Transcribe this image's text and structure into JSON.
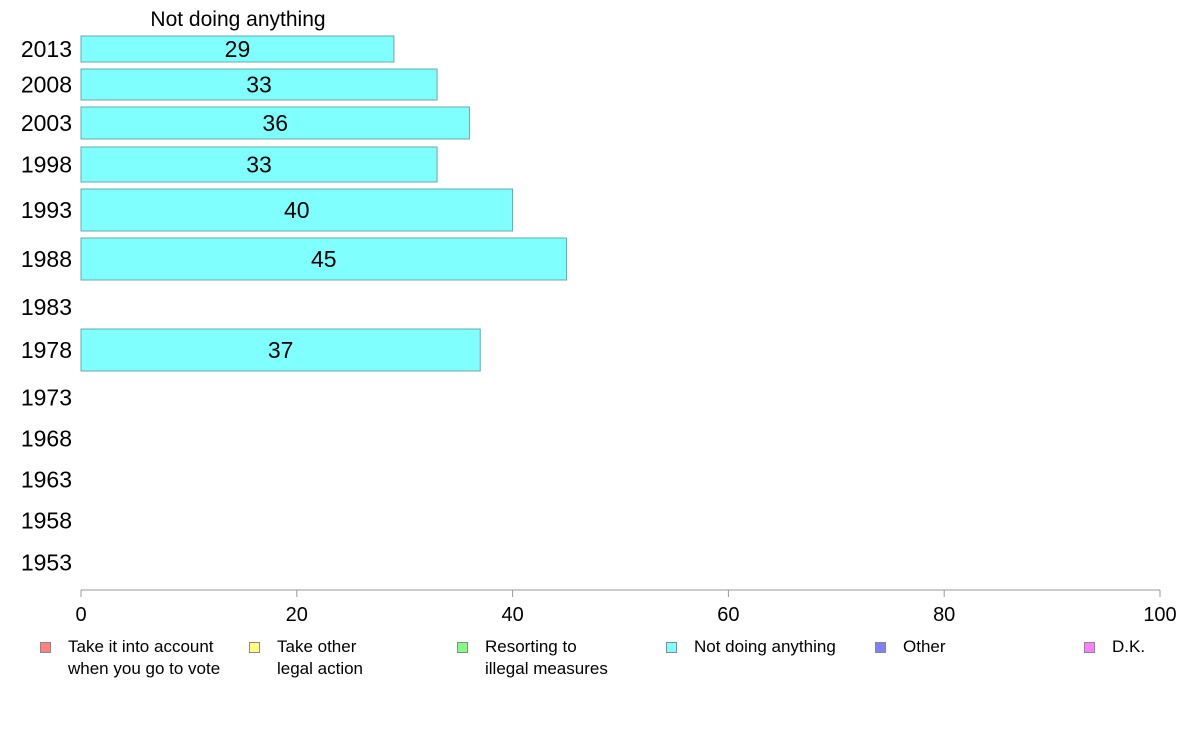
{
  "chart_data": {
    "type": "bar",
    "orientation": "horizontal",
    "title": "Not doing anything",
    "categories": [
      "2013",
      "2008",
      "2003",
      "1998",
      "1993",
      "1988",
      "1983",
      "1978",
      "1973",
      "1968",
      "1963",
      "1958",
      "1953"
    ],
    "series": [
      {
        "name": "Not doing anything",
        "color": "#80ffff",
        "values": [
          29,
          33,
          36,
          33,
          40,
          45,
          null,
          37,
          null,
          null,
          null,
          null,
          null
        ],
        "labels": [
          "29",
          "33",
          "36",
          "33",
          "40",
          "45",
          "",
          "37",
          "",
          "",
          "",
          "",
          ""
        ]
      }
    ],
    "xlim": [
      0,
      100
    ],
    "xticks": [
      "0",
      "20",
      "40",
      "60",
      "80",
      "100"
    ],
    "xlabel": "",
    "ylabel": "",
    "grid": false,
    "legend_position": "bottom"
  },
  "legend": [
    {
      "label": "Take it into account\nwhen you go to vote",
      "color": "#ff8080"
    },
    {
      "label": "Take other\nlegal action",
      "color": "#ffff80"
    },
    {
      "label": "Resorting to\nillegal measures",
      "color": "#80ff80"
    },
    {
      "label": "Not doing anything",
      "color": "#80ffff"
    },
    {
      "label": "Other",
      "color": "#8080ff"
    },
    {
      "label": "D.K.",
      "color": "#ff80ff"
    }
  ]
}
